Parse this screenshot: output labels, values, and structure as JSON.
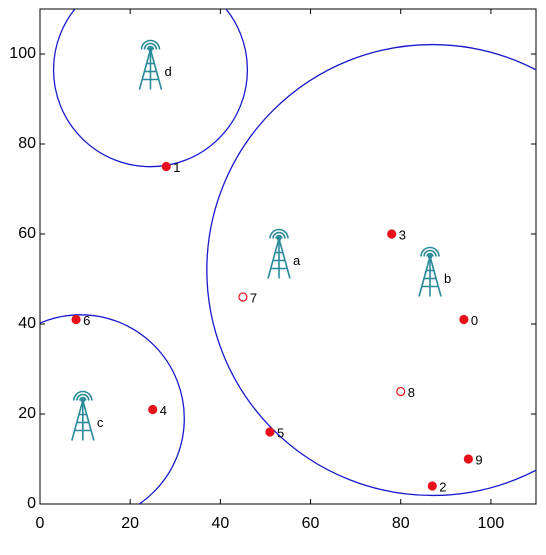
{
  "chart_data": {
    "type": "scatter",
    "xlim": [
      0,
      110
    ],
    "ylim": [
      0,
      110
    ],
    "xticks": [
      0,
      20,
      40,
      60,
      80,
      100
    ],
    "yticks": [
      0,
      20,
      40,
      60,
      80,
      100
    ],
    "nodes": {
      "labels": [
        "0",
        "1",
        "2",
        "3",
        "4",
        "5",
        "6",
        "7",
        "8",
        "9"
      ],
      "x": [
        94,
        28,
        87,
        78,
        25,
        51,
        8,
        45,
        80,
        95
      ],
      "y": [
        41,
        75,
        4,
        60,
        21,
        16,
        41,
        46,
        25,
        10
      ],
      "filled": [
        true,
        true,
        true,
        true,
        true,
        true,
        true,
        false,
        false,
        true
      ],
      "color": "#e8101a"
    },
    "stations": {
      "labels": [
        "a",
        "b",
        "c",
        "d"
      ],
      "x": [
        53,
        86.5,
        9.5,
        24.5
      ],
      "y": [
        55,
        51,
        19,
        97
      ],
      "color": "#2a8a9a"
    },
    "coverage": {
      "x": [
        87,
        9,
        24.5
      ],
      "y": [
        52,
        19,
        96.5
      ],
      "r": [
        50,
        23,
        21.5
      ],
      "color": "#1a1acc"
    }
  }
}
